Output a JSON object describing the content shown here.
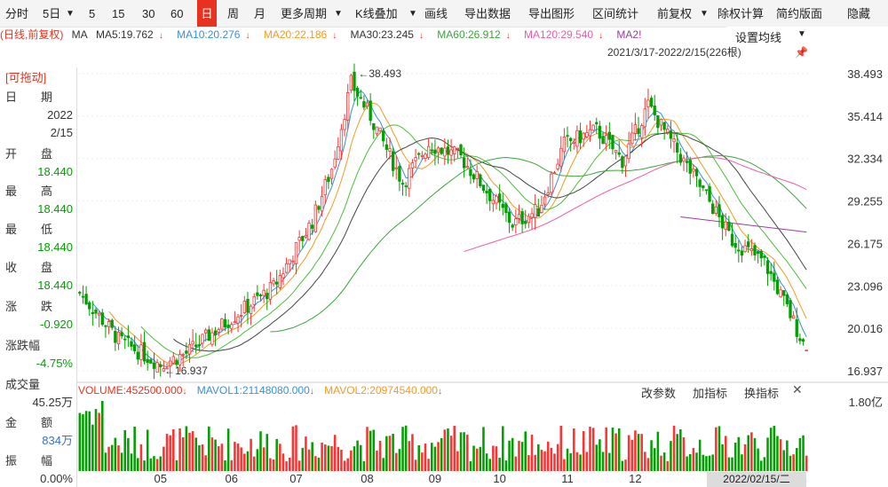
{
  "toolbar": {
    "items": [
      "分时",
      "5日",
      "5",
      "15",
      "30",
      "60",
      "日",
      "周",
      "月",
      "更多周期",
      "K线叠加",
      "画线",
      "导出数据",
      "导出图形",
      "区间统计",
      "前复权",
      "除权计算",
      "简约版面",
      "隐藏"
    ],
    "active": "日",
    "ma_setting": "设置均线"
  },
  "ma_legend": {
    "prefix": "(日线,前复权)",
    "ma": "MA",
    "ma5": "MA5:19.762",
    "ma10": "MA10:20.276",
    "ma20": "MA20:22.186",
    "ma30": "MA30:23.245",
    "ma60": "MA60:26.912",
    "ma120": "MA120:29.540",
    "ma250": "MA2!"
  },
  "date_range": "2021/3/17-2022/2/15(226根)",
  "info": {
    "draggable_label": "[可拖动]",
    "date_label_1": "日",
    "date_label_2": "期",
    "year": "2022",
    "date": "2/15",
    "open_label": "开",
    "open_label2": "盘",
    "open": "18.440",
    "high_label": "最",
    "high_label2": "高",
    "high": "18.440",
    "low_label": "最",
    "low_label2": "低",
    "low": "18.440",
    "close_label": "收",
    "close_label2": "盘",
    "close": "18.440",
    "change_label": "涨",
    "change_label2": "跌",
    "change": "-0.920",
    "pct_label": "涨跌幅",
    "pct": "-4.75%",
    "vol_label": "成交量",
    "vol": "45.25万",
    "amount_label": "金",
    "amount_label2": "额",
    "amount": "834万",
    "amp_label": "振",
    "amp_label2": "幅",
    "amp": "0.00%"
  },
  "volume_legend": {
    "vol": "VOLUME:452500.000",
    "mavol1": "MAVOL1:21148080.000",
    "mavol2": "MAVOL2:20974540.000",
    "btn_param": "改参数",
    "btn_add": "加指标",
    "btn_switch": "换指标"
  },
  "bottom_date": "2022/02/15/二",
  "colors": {
    "up": "#ff3232",
    "down": "#00a000",
    "ma5": "#3b8fd8",
    "ma10": "#f39a23",
    "ma20": "#4bbf3b",
    "ma30": "#444444",
    "ma60": "#3aa63a",
    "ma120": "#ef5ba6",
    "ma250": "#9b3aa6"
  },
  "chart_data": {
    "type": "candlestick",
    "title": "",
    "period": "日线 前复权",
    "date_range": "2021/3/17-2022/2/15",
    "bars": 226,
    "x_tick_labels": [
      "05",
      "06",
      "07",
      "08",
      "09",
      "10",
      "11",
      "12"
    ],
    "price_ticks": [
      "38.493",
      "35.414",
      "32.334",
      "29.255",
      "26.175",
      "23.096",
      "20.016",
      "16.937"
    ],
    "ylim": [
      16.937,
      38.493
    ],
    "annotations": [
      {
        "text": "38.493",
        "kind": "period-high",
        "month": "08"
      },
      {
        "text": "16.937",
        "kind": "period-low",
        "month": "05"
      }
    ],
    "last_bar": {
      "date": "2022/02/15",
      "open": 18.44,
      "high": 18.44,
      "low": 18.44,
      "close": 18.44
    },
    "ma_last": {
      "MA5": 19.762,
      "MA10": 20.276,
      "MA20": 22.186,
      "MA30": 23.245,
      "MA60": 26.912,
      "MA120": 29.54
    },
    "volume_ticks": [
      "1.80亿"
    ],
    "anchor_points": [
      {
        "month": "05",
        "price": 16.937
      },
      {
        "month": "08",
        "price": 38.493
      },
      {
        "date": "2022/02/15",
        "price": 18.44
      }
    ]
  }
}
